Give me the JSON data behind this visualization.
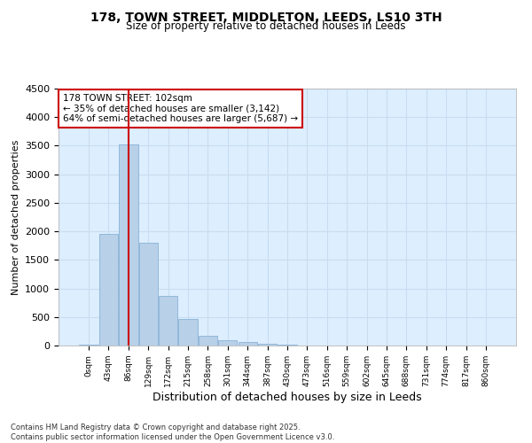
{
  "title_line1": "178, TOWN STREET, MIDDLETON, LEEDS, LS10 3TH",
  "title_line2": "Size of property relative to detached houses in Leeds",
  "xlabel": "Distribution of detached houses by size in Leeds",
  "ylabel": "Number of detached properties",
  "bar_color": "#b8d0e8",
  "bar_edge_color": "#7aaad0",
  "grid_color": "#c8ddf0",
  "annotation_box_color": "#cc0000",
  "vline_color": "#cc0000",
  "vline_position": 2,
  "annotation_text": "178 TOWN STREET: 102sqm\n← 35% of detached houses are smaller (3,142)\n64% of semi-detached houses are larger (5,687) →",
  "categories": [
    "0sqm",
    "43sqm",
    "86sqm",
    "129sqm",
    "172sqm",
    "215sqm",
    "258sqm",
    "301sqm",
    "344sqm",
    "387sqm",
    "430sqm",
    "473sqm",
    "516sqm",
    "559sqm",
    "602sqm",
    "645sqm",
    "688sqm",
    "731sqm",
    "774sqm",
    "817sqm",
    "860sqm"
  ],
  "bar_values": [
    20,
    1950,
    3530,
    1800,
    870,
    460,
    175,
    95,
    55,
    30,
    15,
    5,
    3,
    2,
    1,
    1,
    0,
    0,
    0,
    0,
    0
  ],
  "ylim": [
    0,
    4500
  ],
  "yticks": [
    0,
    500,
    1000,
    1500,
    2000,
    2500,
    3000,
    3500,
    4000,
    4500
  ],
  "footnote": "Contains HM Land Registry data © Crown copyright and database right 2025.\nContains public sector information licensed under the Open Government Licence v3.0.",
  "background_color": "#ffffff",
  "plot_bg_color": "#ddeeff"
}
